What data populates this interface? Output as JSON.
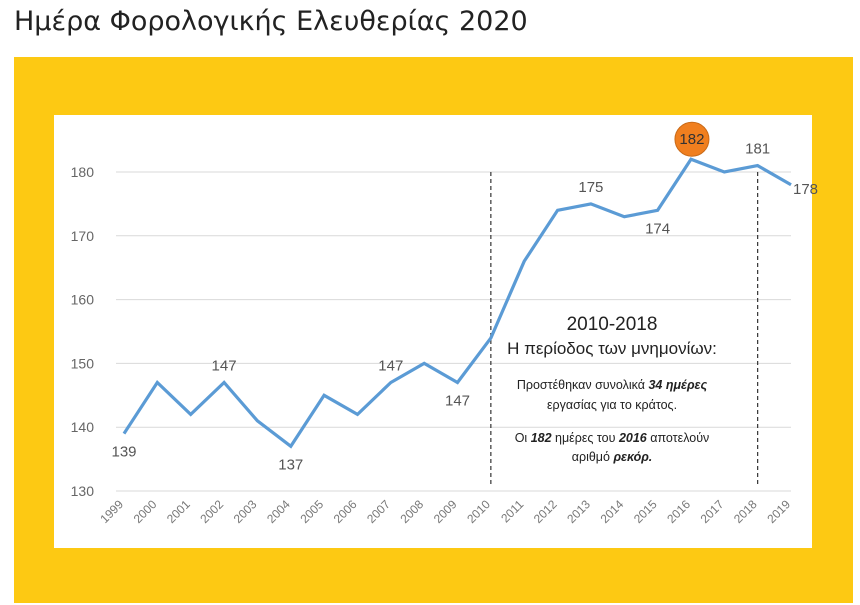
{
  "page": {
    "title": "Ημέρα Φορολογικής Ελευθερίας 2020"
  },
  "colors": {
    "frame": "#fdc913",
    "line": "#5b9bd5",
    "highlight": "#f07f1f",
    "grid": "#d9d9d9"
  },
  "chart_data": {
    "type": "line",
    "x": [
      "1999",
      "2000",
      "2001",
      "2002",
      "2003",
      "2004",
      "2005",
      "2006",
      "2007",
      "2008",
      "2009",
      "2010",
      "2011",
      "2012",
      "2013",
      "2014",
      "2015",
      "2016",
      "2017",
      "2018",
      "2019"
    ],
    "series": [
      {
        "values": [
          139,
          147,
          142,
          147,
          141,
          137,
          145,
          142,
          147,
          150,
          147,
          154,
          166,
          174,
          175,
          173,
          174,
          182,
          180,
          181,
          178
        ]
      }
    ],
    "ylim": [
      130,
      180
    ],
    "yticks": [
      "130",
      "140",
      "150",
      "160",
      "170",
      "180"
    ],
    "grid": true,
    "data_labels": [
      {
        "x": "1999",
        "text": "139",
        "pos": "below"
      },
      {
        "x": "2002",
        "text": "147",
        "pos": "above"
      },
      {
        "x": "2004",
        "text": "137",
        "pos": "below"
      },
      {
        "x": "2007",
        "text": "147",
        "pos": "above"
      },
      {
        "x": "2009",
        "text": "147",
        "pos": "below"
      },
      {
        "x": "2013",
        "text": "175",
        "pos": "above"
      },
      {
        "x": "2015",
        "text": "174",
        "pos": "below"
      },
      {
        "x": "2016",
        "text": "182",
        "pos": "highlight"
      },
      {
        "x": "2018",
        "text": "181",
        "pos": "above"
      },
      {
        "x": "2019",
        "text": "178",
        "pos": "right"
      }
    ],
    "reference_lines": [
      "2010",
      "2018"
    ],
    "annotation": {
      "title": "2010-2018",
      "subtitle": "Η περίοδος των μνημονίων:",
      "p1_line1_pre": "Προστέθηκαν συνολικά ",
      "p1_line1_bold": "34 ημέρες",
      "p1_line2": "εργασίας για το κράτος.",
      "p2_line1_pre": "Οι ",
      "p2_line1_bold1": "182",
      "p2_line1_mid": " ημέρες του ",
      "p2_line1_bold2": "2016",
      "p2_line1_post": " αποτελούν",
      "p2_line2_pre": "αριθμό ",
      "p2_line2_bold": "ρεκόρ."
    }
  }
}
